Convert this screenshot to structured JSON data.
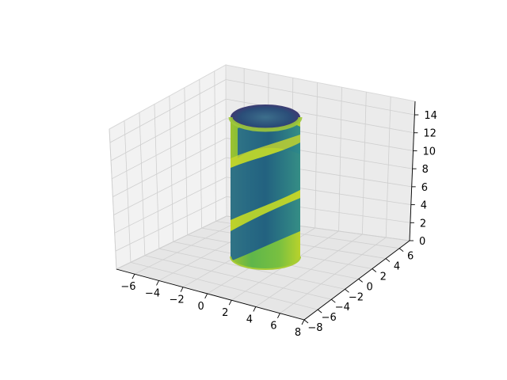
{
  "chart_data": {
    "type": "surface3d",
    "title": "",
    "xlabel": "",
    "ylabel": "",
    "zlabel": "",
    "x_ticks": [
      -6,
      -4,
      -2,
      0,
      2,
      4,
      6,
      8
    ],
    "y_ticks": [
      -8,
      -6,
      -4,
      -2,
      0,
      2,
      4,
      6
    ],
    "z_ticks": [
      0,
      2,
      4,
      6,
      8,
      10,
      12,
      14
    ],
    "xlim": [
      -7.5,
      8
    ],
    "ylim": [
      -8,
      7.5
    ],
    "zlim": [
      0,
      15.5
    ],
    "surface": {
      "shape": "cylinder",
      "radius": 3.6,
      "z_range": [
        0,
        15
      ],
      "colormap": "viridis",
      "pattern": "helical stripes"
    },
    "grid": true
  }
}
